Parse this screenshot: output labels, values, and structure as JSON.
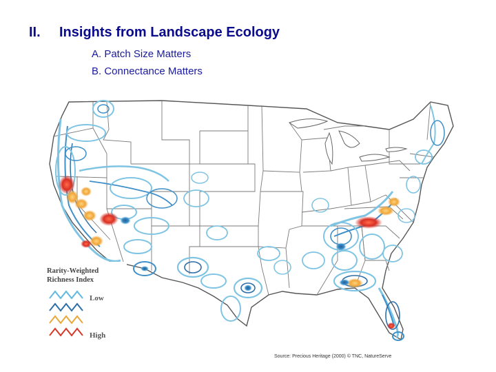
{
  "slide": {
    "section_number": "II.",
    "title": "Insights from Landscape Ecology",
    "subitems": [
      "A. Patch Size Matters",
      "B. Connectance Matters"
    ]
  },
  "map": {
    "legend": {
      "title_line1": "Rarity-Weighted",
      "title_line2": "Richness Index",
      "low_label": "Low",
      "high_label": "High",
      "scale_colors": [
        "#5fb8df",
        "#2f6fa8",
        "#e8a83a",
        "#d63a2a"
      ]
    },
    "source": "Source: Precious Heritage (2000) © TNC, NatureServe",
    "colors": {
      "state_border": "#7a7a7a",
      "contour_light": "#7fc4e3",
      "contour_dark": "#2f6fa8",
      "hotspot_orange": "#f0a63a",
      "hotspot_red": "#d93025"
    }
  }
}
